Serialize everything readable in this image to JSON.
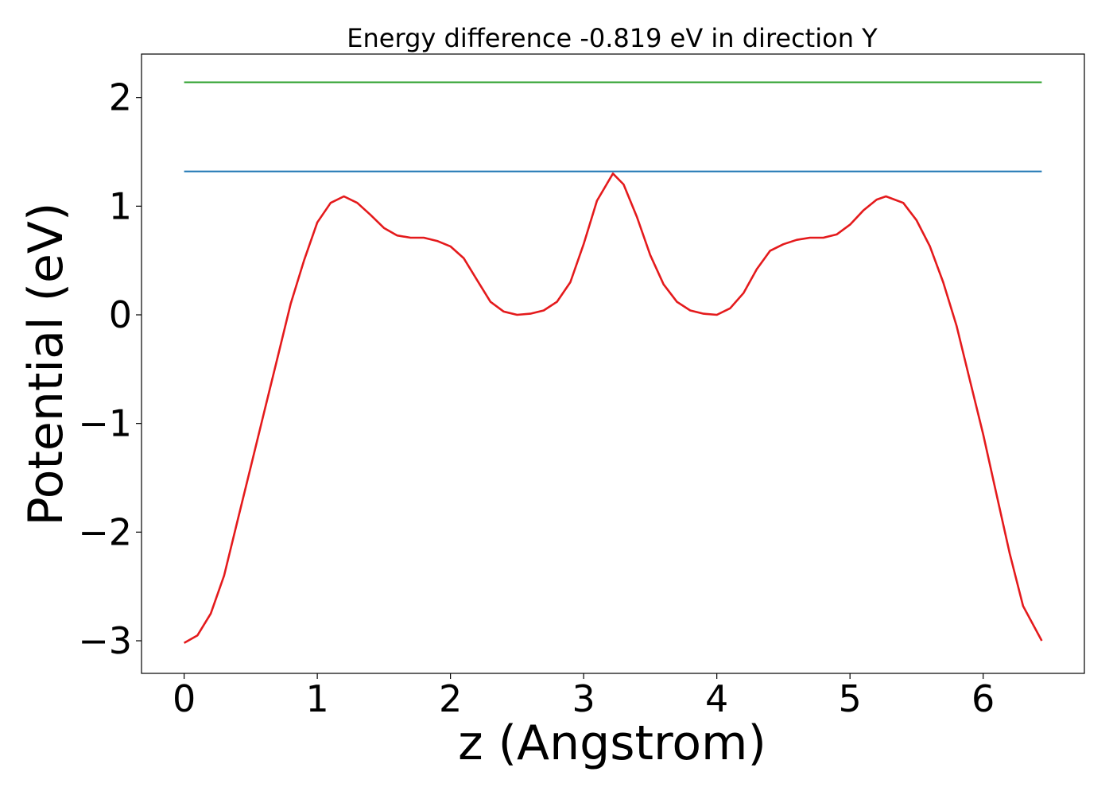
{
  "chart_data": {
    "type": "line",
    "title": "Energy difference -0.819 eV in direction Y",
    "xlabel": "z (Angstrom)",
    "ylabel": "Potential (eV)",
    "xlim": [
      -0.32,
      6.76
    ],
    "ylim": [
      -3.3,
      2.4
    ],
    "xticks": [
      0,
      1,
      2,
      3,
      4,
      5,
      6
    ],
    "xtick_labels": [
      "0",
      "1",
      "2",
      "3",
      "4",
      "5",
      "6"
    ],
    "yticks": [
      -3,
      -2,
      -1,
      0,
      1,
      2
    ],
    "ytick_labels": [
      "−3",
      "−2",
      "−1",
      "0",
      "1",
      "2"
    ],
    "grid": false,
    "series": [
      {
        "color": "#2ca02c",
        "x": [
          0,
          6.44
        ],
        "y": [
          2.14,
          2.14
        ]
      },
      {
        "color": "#1f77b4",
        "x": [
          0,
          6.44
        ],
        "y": [
          1.32,
          1.32
        ]
      },
      {
        "color": "#e41a1c",
        "x": [
          0,
          0.1,
          0.2,
          0.3,
          0.4,
          0.5,
          0.6,
          0.7,
          0.8,
          0.9,
          1.0,
          1.1,
          1.2,
          1.3,
          1.4,
          1.5,
          1.6,
          1.7,
          1.8,
          1.9,
          2.0,
          2.1,
          2.2,
          2.3,
          2.4,
          2.5,
          2.6,
          2.7,
          2.8,
          2.9,
          3.0,
          3.1,
          3.22,
          3.3,
          3.4,
          3.5,
          3.6,
          3.7,
          3.8,
          3.9,
          4.0,
          4.1,
          4.2,
          4.3,
          4.4,
          4.5,
          4.6,
          4.7,
          4.8,
          4.9,
          5.0,
          5.1,
          5.2,
          5.27,
          5.4,
          5.5,
          5.6,
          5.7,
          5.8,
          5.9,
          6.0,
          6.1,
          6.2,
          6.3,
          6.44
        ],
        "y": [
          -3.02,
          -2.95,
          -2.75,
          -2.4,
          -1.9,
          -1.4,
          -0.9,
          -0.4,
          0.1,
          0.5,
          0.85,
          1.03,
          1.09,
          1.03,
          0.92,
          0.8,
          0.73,
          0.71,
          0.71,
          0.68,
          0.63,
          0.52,
          0.32,
          0.12,
          0.03,
          0.0,
          0.01,
          0.04,
          0.12,
          0.3,
          0.65,
          1.05,
          1.3,
          1.2,
          0.9,
          0.55,
          0.28,
          0.12,
          0.04,
          0.01,
          0.0,
          0.06,
          0.2,
          0.42,
          0.59,
          0.65,
          0.69,
          0.71,
          0.71,
          0.74,
          0.83,
          0.96,
          1.06,
          1.09,
          1.03,
          0.87,
          0.63,
          0.3,
          -0.1,
          -0.6,
          -1.1,
          -1.65,
          -2.2,
          -2.68,
          -3.0
        ]
      }
    ]
  }
}
